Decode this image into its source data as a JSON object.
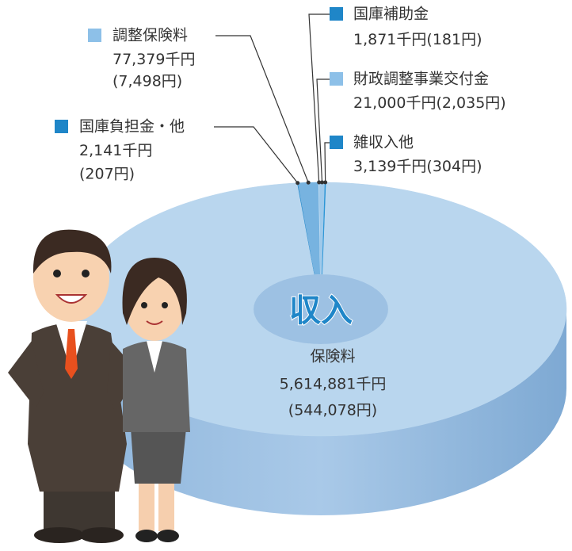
{
  "chart_data": {
    "type": "pie",
    "center_label": "収入",
    "categories": [
      "保険料",
      "国庫負担金・他",
      "調整保険料",
      "国庫補助金",
      "財政調整事業交付金",
      "雑収入他"
    ],
    "values": [
      5614881,
      2141,
      77379,
      1871,
      21000,
      3139
    ],
    "value_labels": [
      "5,614,881千円",
      "2,141千円",
      "77,379千円",
      "1,871千円",
      "21,000千円",
      "3,139千円"
    ],
    "per_person": {
      "values": [
        544078,
        207,
        7498,
        181,
        2035,
        304
      ],
      "value_labels": [
        "(544,078円)",
        "(207円)",
        "(7,498円)",
        "(181円)",
        "(2,035円)",
        "(304円)"
      ]
    },
    "colors": [
      "#b9d6ee",
      "#1f86c8",
      "#77b3e0",
      "#e6f1fa",
      "#9fc9ea",
      "#2a95d6"
    ]
  }
}
